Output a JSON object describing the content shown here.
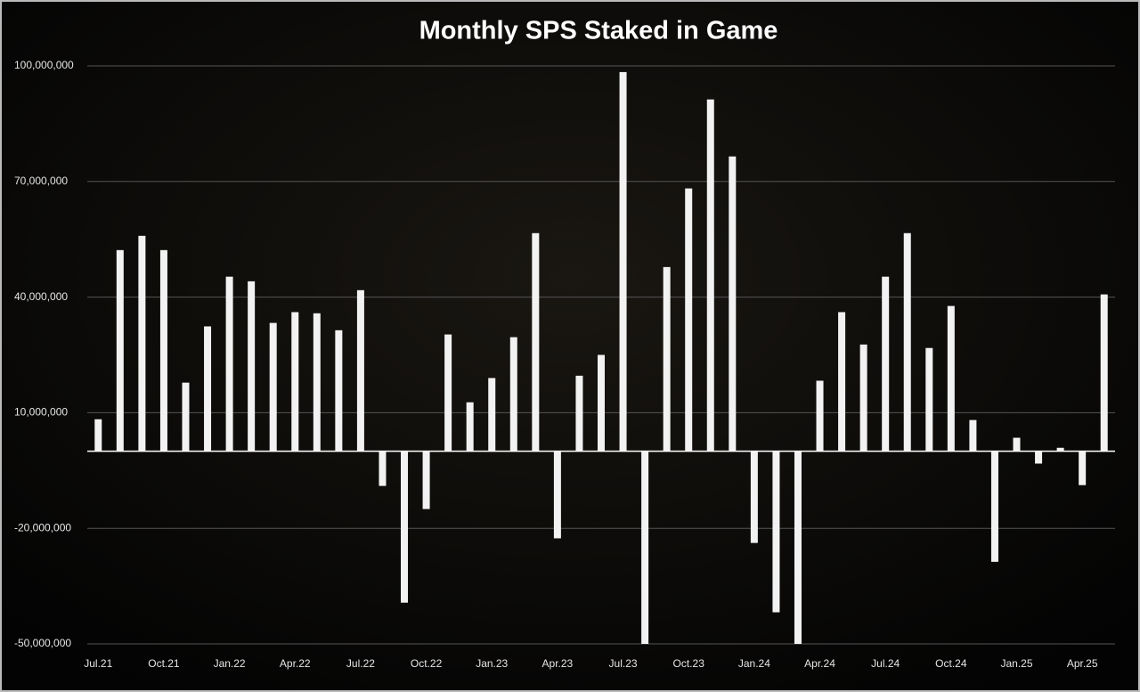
{
  "chart_data": {
    "type": "bar",
    "title": "Monthly SPS Staked in Game",
    "categories": [
      "Jul.21",
      null,
      null,
      "Oct.21",
      null,
      null,
      "Jan.22",
      null,
      null,
      "Apr.22",
      null,
      null,
      "Jul.22",
      null,
      null,
      "Oct.22",
      null,
      null,
      "Jan.23",
      null,
      null,
      "Apr.23",
      null,
      null,
      "Jul.23",
      null,
      null,
      "Oct.23",
      null,
      null,
      "Jan.24",
      null,
      null,
      "Apr.24",
      null,
      null,
      "Jul.24",
      null,
      null,
      "Oct.24",
      null,
      null,
      "Jan.25",
      null,
      null,
      "Apr.25",
      null
    ],
    "values": [
      8300000,
      52200000,
      55900000,
      52200000,
      17800000,
      32400000,
      45300000,
      44100000,
      33300000,
      36100000,
      35800000,
      31400000,
      41800000,
      -9000000,
      -39300000,
      -15000000,
      30300000,
      12700000,
      19000000,
      29600000,
      56600000,
      -22600000,
      19600000,
      25000000,
      98400000,
      -50000000,
      47800000,
      68200000,
      91300000,
      76500000,
      -23800000,
      -41800000,
      -50000000,
      18300000,
      36100000,
      27700000,
      45300000,
      56600000,
      26800000,
      37700000,
      8100000,
      -28700000,
      3500000,
      -3200000,
      900000,
      -8800000,
      40700000
    ],
    "color": "#f2f2f2",
    "ylim": [
      -50000000,
      100000000
    ],
    "yticks": [
      {
        "value": 100000000,
        "label": "100,000,000"
      },
      {
        "value": 70000000,
        "label": "70,000,000"
      },
      {
        "value": 40000000,
        "label": "40,000,000"
      },
      {
        "value": 10000000,
        "label": "10,000,000"
      },
      {
        "value": -20000000,
        "label": "-20,000,000"
      },
      {
        "value": -50000000,
        "label": "-50,000,000"
      }
    ],
    "grid": true
  }
}
